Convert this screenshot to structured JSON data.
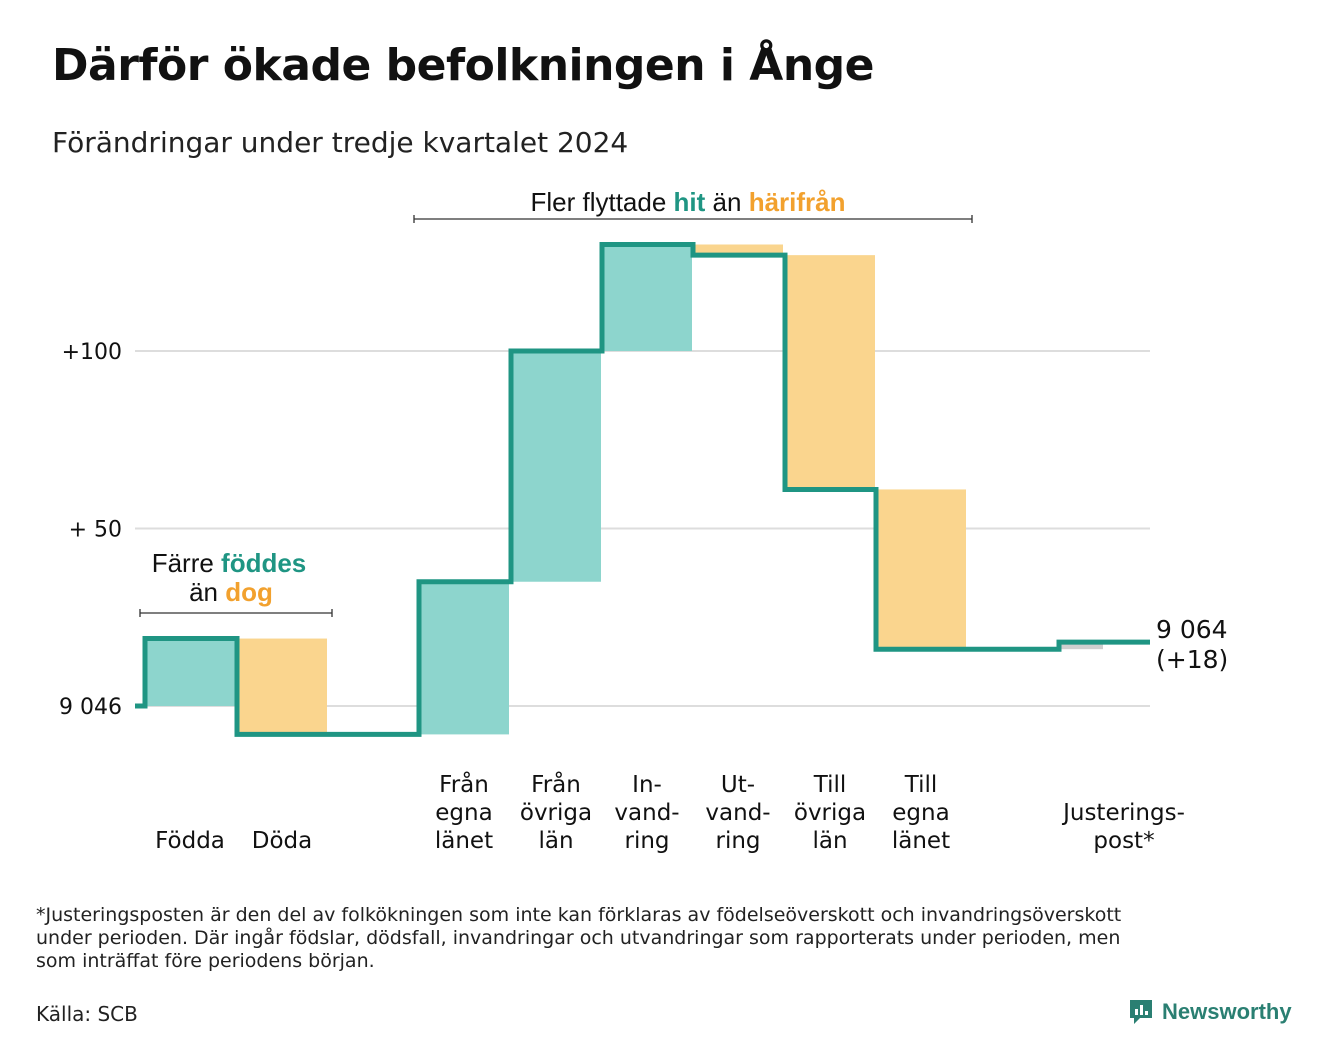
{
  "title": "Därför ökade befolkningen i Ånge",
  "subtitle": "Förändringar under tredje kvartalet 2024",
  "chart_data": {
    "type": "waterfall",
    "baseline": 9046,
    "yticks": [
      {
        "value": 0,
        "label": "9 046"
      },
      {
        "value": 50,
        "label": "+ 50"
      },
      {
        "value": 100,
        "label": "+100"
      }
    ],
    "grid": true,
    "steps": [
      {
        "label": [
          "Födda"
        ],
        "delta": 19,
        "kind": "in"
      },
      {
        "label": [
          "Döda"
        ],
        "delta": -27,
        "kind": "out"
      },
      {
        "label": [
          "Från",
          "egna",
          "länet"
        ],
        "delta": 43,
        "kind": "in"
      },
      {
        "label": [
          "Från",
          "övriga",
          "län"
        ],
        "delta": 65,
        "kind": "in"
      },
      {
        "label": [
          "In-",
          "vand-",
          "ring"
        ],
        "delta": 30,
        "kind": "in"
      },
      {
        "label": [
          "Ut-",
          "vand-",
          "ring"
        ],
        "delta": -3,
        "kind": "out"
      },
      {
        "label": [
          "Till",
          "övriga",
          "län"
        ],
        "delta": -66,
        "kind": "out"
      },
      {
        "label": [
          "Till",
          "egna",
          "länet"
        ],
        "delta": -45,
        "kind": "out"
      },
      {
        "label": [
          "Justerings-",
          "post*"
        ],
        "delta": 2,
        "kind": "adjust"
      }
    ],
    "end_value_label": "9 064",
    "end_change_label": "(+18)",
    "annotations": [
      {
        "id": "births",
        "lines": [
          [
            {
              "t": "Färre ",
              "c": "plain"
            },
            {
              "t": "föddes",
              "c": "in"
            }
          ],
          [
            {
              "t": "än ",
              "c": "plain"
            },
            {
              "t": "dog",
              "c": "out"
            }
          ]
        ]
      },
      {
        "id": "moves",
        "lines": [
          [
            {
              "t": "Fler flyttade ",
              "c": "plain"
            },
            {
              "t": "hit",
              "c": "in"
            },
            {
              "t": " än ",
              "c": "plain"
            },
            {
              "t": "härifrån",
              "c": "out"
            }
          ]
        ]
      }
    ],
    "colors": {
      "in_fill": "#8dd5cd",
      "out_fill": "#fad58e",
      "adjust_fill": "#cfcfcf",
      "line": "#1f9583",
      "in_text": "#1f9583",
      "out_text": "#f2a12e",
      "grid": "#dddddd"
    }
  },
  "footnote": [
    "*Justeringsposten är den del av folkökningen som inte kan förklaras av födelseöverskott och invandringsöverskott",
    "under perioden. Där ingår födslar, dödsfall, invandringar och utvandringar som rapporterats under perioden, men",
    "som inträffat före periodens början."
  ],
  "source": "Källa: SCB",
  "brand": "Newsworthy"
}
